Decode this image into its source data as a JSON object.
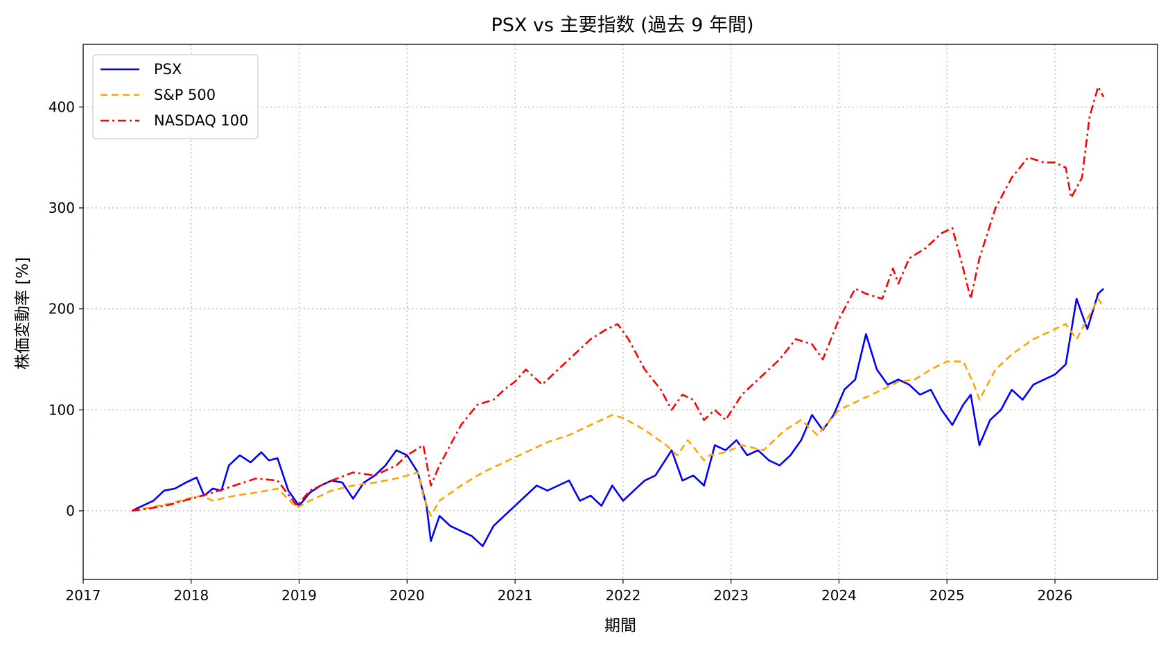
{
  "chart_data": {
    "type": "line",
    "title": "PSX vs 主要指数 (過去 9 年間)",
    "xlabel": "期間",
    "ylabel": "株価変動率 [%]",
    "xlim": [
      2017.0,
      2026.95
    ],
    "ylim": [
      -68,
      462
    ],
    "x_ticks": [
      2017,
      2018,
      2019,
      2020,
      2021,
      2022,
      2023,
      2024,
      2025,
      2026
    ],
    "x_tick_labels": [
      "2017",
      "2018",
      "2019",
      "2020",
      "2021",
      "2022",
      "2023",
      "2024",
      "2025",
      "2026"
    ],
    "y_ticks": [
      0,
      100,
      200,
      300,
      400
    ],
    "y_tick_labels": [
      "0",
      "100",
      "200",
      "300",
      "400"
    ],
    "grid": true,
    "legend_position": "top-left",
    "series": [
      {
        "name": "PSX",
        "color": "#0000ff",
        "dash": "solid",
        "x": [
          2017.45,
          2017.55,
          2017.65,
          2017.75,
          2017.85,
          2017.95,
          2018.05,
          2018.12,
          2018.2,
          2018.28,
          2018.35,
          2018.45,
          2018.55,
          2018.65,
          2018.72,
          2018.8,
          2018.9,
          2019.0,
          2019.1,
          2019.2,
          2019.3,
          2019.4,
          2019.5,
          2019.6,
          2019.7,
          2019.8,
          2019.9,
          2020.0,
          2020.1,
          2020.18,
          2020.22,
          2020.3,
          2020.4,
          2020.5,
          2020.6,
          2020.7,
          2020.8,
          2020.9,
          2021.0,
          2021.1,
          2021.2,
          2021.3,
          2021.4,
          2021.5,
          2021.6,
          2021.7,
          2021.8,
          2021.9,
          2022.0,
          2022.1,
          2022.2,
          2022.3,
          2022.45,
          2022.55,
          2022.65,
          2022.75,
          2022.85,
          2022.95,
          2023.05,
          2023.15,
          2023.25,
          2023.35,
          2023.45,
          2023.55,
          2023.65,
          2023.75,
          2023.85,
          2023.95,
          2024.05,
          2024.15,
          2024.25,
          2024.35,
          2024.45,
          2024.55,
          2024.65,
          2024.75,
          2024.85,
          2024.95,
          2025.05,
          2025.15,
          2025.22,
          2025.3,
          2025.4,
          2025.5,
          2025.6,
          2025.7,
          2025.8,
          2025.9,
          2026.0,
          2026.1,
          2026.2,
          2026.3,
          2026.4,
          2026.45
        ],
        "y": [
          0,
          5,
          10,
          20,
          22,
          28,
          33,
          15,
          22,
          20,
          45,
          55,
          48,
          58,
          50,
          52,
          20,
          5,
          18,
          25,
          30,
          28,
          12,
          28,
          35,
          45,
          60,
          55,
          38,
          5,
          -30,
          -5,
          -15,
          -20,
          -25,
          -35,
          -15,
          -5,
          5,
          15,
          25,
          20,
          25,
          30,
          10,
          15,
          5,
          25,
          10,
          20,
          30,
          35,
          60,
          30,
          35,
          25,
          65,
          60,
          70,
          55,
          60,
          50,
          45,
          55,
          70,
          95,
          80,
          95,
          120,
          130,
          175,
          140,
          125,
          130,
          125,
          115,
          120,
          100,
          85,
          105,
          115,
          65,
          90,
          100,
          120,
          110,
          125,
          130,
          135,
          145,
          210,
          180,
          215,
          220
        ]
      },
      {
        "name": "S&P 500",
        "color": "#ffa500",
        "dash": "dashed",
        "x": [
          2017.45,
          2017.6,
          2017.8,
          2018.0,
          2018.1,
          2018.2,
          2018.4,
          2018.6,
          2018.8,
          2018.98,
          2019.1,
          2019.3,
          2019.5,
          2019.7,
          2019.9,
          2020.1,
          2020.15,
          2020.22,
          2020.3,
          2020.5,
          2020.7,
          2020.9,
          2021.1,
          2021.3,
          2021.5,
          2021.7,
          2021.9,
          2022.0,
          2022.2,
          2022.4,
          2022.5,
          2022.6,
          2022.75,
          2022.8,
          2022.95,
          2023.1,
          2023.3,
          2023.5,
          2023.65,
          2023.8,
          2024.0,
          2024.2,
          2024.4,
          2024.55,
          2024.7,
          2024.85,
          2025.0,
          2025.15,
          2025.25,
          2025.3,
          2025.45,
          2025.6,
          2025.8,
          2026.0,
          2026.1,
          2026.2,
          2026.3,
          2026.4,
          2026.45
        ],
        "y": [
          0,
          3,
          7,
          13,
          15,
          10,
          15,
          18,
          22,
          3,
          10,
          20,
          25,
          28,
          32,
          38,
          15,
          -5,
          10,
          25,
          38,
          48,
          58,
          68,
          75,
          85,
          95,
          92,
          80,
          65,
          55,
          70,
          50,
          55,
          58,
          65,
          60,
          80,
          90,
          75,
          100,
          110,
          120,
          128,
          130,
          140,
          148,
          148,
          125,
          110,
          140,
          155,
          170,
          180,
          185,
          170,
          190,
          210,
          202
        ]
      },
      {
        "name": "NASDAQ 100",
        "color": "#ff0000",
        "dash": "dashdot",
        "x": [
          2017.45,
          2017.6,
          2017.8,
          2018.0,
          2018.2,
          2018.4,
          2018.6,
          2018.8,
          2018.98,
          2019.1,
          2019.3,
          2019.5,
          2019.7,
          2019.9,
          2020.0,
          2020.15,
          2020.22,
          2020.3,
          2020.5,
          2020.65,
          2020.8,
          2020.9,
          2021.0,
          2021.1,
          2021.25,
          2021.4,
          2021.55,
          2021.7,
          2021.85,
          2021.95,
          2022.05,
          2022.2,
          2022.35,
          2022.45,
          2022.55,
          2022.65,
          2022.75,
          2022.85,
          2022.95,
          2023.1,
          2023.25,
          2023.45,
          2023.6,
          2023.75,
          2023.85,
          2024.0,
          2024.15,
          2024.25,
          2024.4,
          2024.5,
          2024.55,
          2024.65,
          2024.8,
          2024.95,
          2025.05,
          2025.15,
          2025.22,
          2025.3,
          2025.45,
          2025.6,
          2025.75,
          2025.9,
          2026.0,
          2026.1,
          2026.15,
          2026.25,
          2026.32,
          2026.4,
          2026.45
        ],
        "y": [
          0,
          2,
          6,
          12,
          18,
          25,
          32,
          30,
          5,
          20,
          30,
          38,
          35,
          45,
          55,
          65,
          25,
          45,
          85,
          105,
          110,
          120,
          128,
          140,
          125,
          140,
          155,
          170,
          180,
          185,
          170,
          140,
          120,
          100,
          115,
          110,
          90,
          100,
          90,
          115,
          130,
          150,
          170,
          165,
          150,
          190,
          220,
          215,
          210,
          240,
          225,
          250,
          260,
          275,
          280,
          240,
          210,
          250,
          300,
          330,
          350,
          345,
          345,
          340,
          310,
          330,
          390,
          420,
          410
        ]
      }
    ]
  }
}
